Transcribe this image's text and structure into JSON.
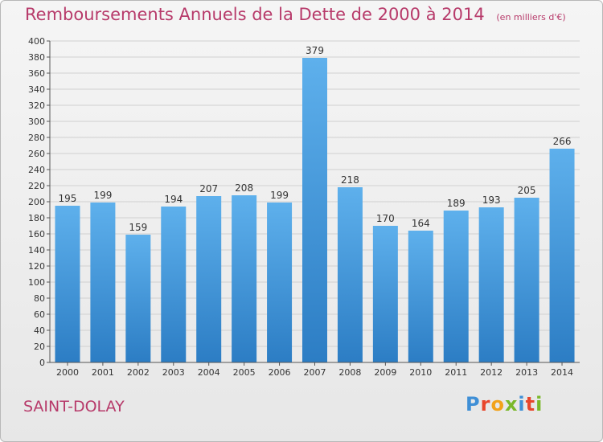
{
  "header": {
    "title": "Remboursements Annuels de la Dette de 2000 à 2014",
    "subtitle": "(en milliers d'€)"
  },
  "footer": {
    "commune": "SAINT-DOLAY",
    "logo_text": "Proxiti"
  },
  "colors": {
    "bar_top": "#5eb0ec",
    "bar_bottom": "#2c7dc4",
    "title": "#b73a6a",
    "grid": "#d0d0d0"
  },
  "chart_data": {
    "type": "bar",
    "categories": [
      "2000",
      "2001",
      "2002",
      "2003",
      "2004",
      "2005",
      "2006",
      "2007",
      "2008",
      "2009",
      "2010",
      "2011",
      "2012",
      "2013",
      "2014"
    ],
    "values": [
      195,
      199,
      159,
      194,
      207,
      208,
      199,
      379,
      218,
      170,
      164,
      189,
      193,
      205,
      266
    ],
    "ylim": [
      0,
      400
    ],
    "ytick_step": 20,
    "grid": true,
    "data_labels": true
  }
}
